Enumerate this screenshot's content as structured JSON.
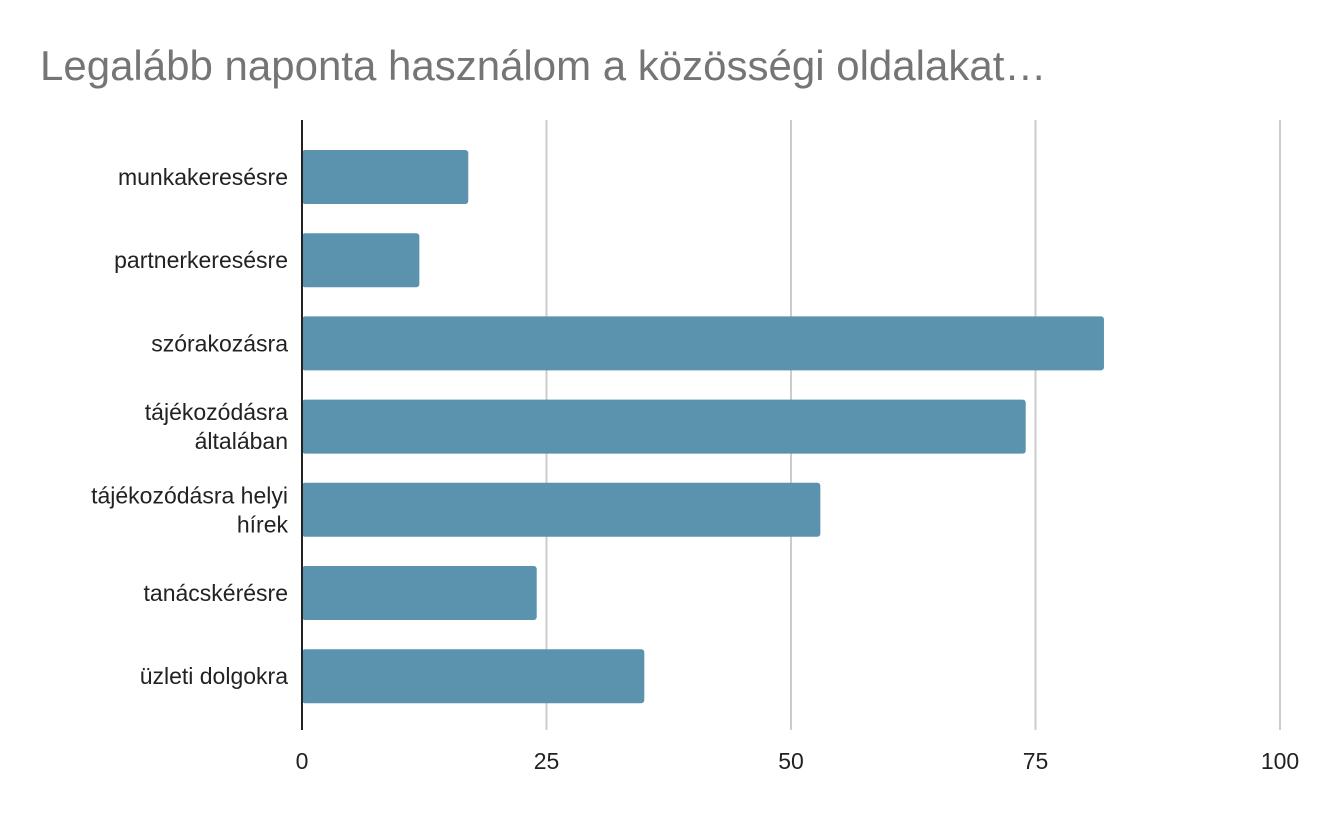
{
  "chart_data": {
    "type": "bar",
    "orientation": "horizontal",
    "title": "Legalább naponta használom a közösségi oldalakat…",
    "categories": [
      [
        "munkakeresésre"
      ],
      [
        "partnerkeresésre"
      ],
      [
        "szórakozásra"
      ],
      [
        "tájékozódásra",
        "általában"
      ],
      [
        "tájékozódásra helyi",
        "hírek"
      ],
      [
        "tanácskérésre"
      ],
      [
        "üzleti dolgokra"
      ]
    ],
    "values": [
      17,
      12,
      82,
      74,
      53,
      24,
      35
    ],
    "xlim": [
      0,
      100
    ],
    "xticks": [
      0,
      25,
      50,
      75,
      100
    ],
    "xlabel": "",
    "ylabel": "",
    "grid": true,
    "legend": "none",
    "bar_color": "#5b92ae",
    "gridline_color": "#cccccc",
    "axis_color": "#222222"
  }
}
